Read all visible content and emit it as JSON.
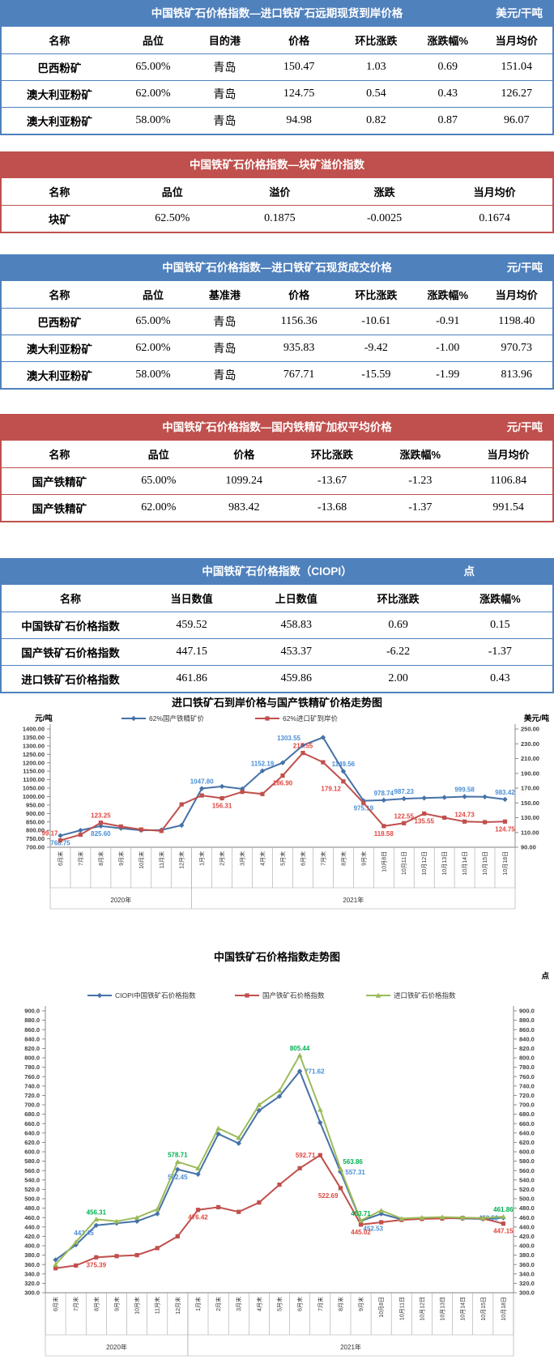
{
  "tables": [
    {
      "theme": "blue",
      "title": "中国铁矿石价格指数—进口铁矿石远期现货到岸价格",
      "unit": "美元/干吨",
      "columns": [
        "名称",
        "品位",
        "目的港",
        "价格",
        "环比涨跌",
        "涨跌幅%",
        "当月均价"
      ],
      "rows": [
        [
          "巴西粉矿",
          "65.00%",
          "青岛",
          "150.47",
          "1.03",
          "0.69",
          "151.04"
        ],
        [
          "澳大利亚粉矿",
          "62.00%",
          "青岛",
          "124.75",
          "0.54",
          "0.43",
          "126.27"
        ],
        [
          "澳大利亚粉矿",
          "58.00%",
          "青岛",
          "94.98",
          "0.82",
          "0.87",
          "96.07"
        ]
      ]
    },
    {
      "theme": "red",
      "title": "中国铁矿石价格指数—块矿溢价指数",
      "unit": "",
      "columns": [
        "名称",
        "品位",
        "溢价",
        "涨跌",
        "当月均价"
      ],
      "rows": [
        [
          "块矿",
          "62.50%",
          "0.1875",
          "-0.0025",
          "0.1674"
        ]
      ]
    },
    {
      "theme": "blue",
      "title": "中国铁矿石价格指数—进口铁矿石现货成交价格",
      "unit": "元/干吨",
      "columns": [
        "名称",
        "品位",
        "基准港",
        "价格",
        "环比涨跌",
        "涨跌幅%",
        "当月均价"
      ],
      "rows": [
        [
          "巴西粉矿",
          "65.00%",
          "青岛",
          "1156.36",
          "-10.61",
          "-0.91",
          "1198.40"
        ],
        [
          "澳大利亚粉矿",
          "62.00%",
          "青岛",
          "935.83",
          "-9.42",
          "-1.00",
          "970.73"
        ],
        [
          "澳大利亚粉矿",
          "58.00%",
          "青岛",
          "767.71",
          "-15.59",
          "-1.99",
          "813.96"
        ]
      ]
    },
    {
      "theme": "red",
      "title": "中国铁矿石价格指数—国内铁精矿加权平均价格",
      "unit": "元/干吨",
      "columns": [
        "名称",
        "品位",
        "价格",
        "环比涨跌",
        "涨跌幅%",
        "当月均价"
      ],
      "rows": [
        [
          "国产铁精矿",
          "65.00%",
          "1099.24",
          "-13.67",
          "-1.23",
          "1106.84"
        ],
        [
          "国产铁精矿",
          "62.00%",
          "983.42",
          "-13.68",
          "-1.37",
          "991.54"
        ]
      ]
    },
    {
      "theme": "blue",
      "title": "中国铁矿石价格指数（CIOPI）",
      "unit": "点",
      "columns": [
        "名称",
        "当日数值",
        "上日数值",
        "环比涨跌",
        "涨跌幅%"
      ],
      "rows": [
        [
          "中国铁矿石价格指数",
          "459.52",
          "458.83",
          "0.69",
          "0.15"
        ],
        [
          "国产铁矿石价格指数",
          "447.15",
          "453.37",
          "-6.22",
          "-1.37"
        ],
        [
          "进口铁矿石价格指数",
          "461.86",
          "459.86",
          "2.00",
          "0.43"
        ]
      ]
    }
  ],
  "chart_data": [
    {
      "type": "line",
      "title": "进口铁矿石到岸价格与国产铁精矿价格走势图",
      "left_axis": {
        "unit": "元/吨",
        "min": 700,
        "max": 1400,
        "step": 50,
        "decimals": 2
      },
      "right_axis": {
        "unit": "美元/吨",
        "min": 90,
        "max": 250,
        "step": 20,
        "decimals": 2
      },
      "categories": [
        "6月末",
        "7月末",
        "8月末",
        "9月末",
        "10月末",
        "11月末",
        "12月末",
        "1月末",
        "2月末",
        "3月末",
        "4月末",
        "5月末",
        "6月末",
        "7月末",
        "8月末",
        "9月末",
        "10月8日",
        "10月11日",
        "10月12日",
        "10月13日",
        "10月14日",
        "10月15日",
        "10月18日"
      ],
      "year_groups": [
        {
          "label": "2020年",
          "from": 0,
          "to": 6
        },
        {
          "label": "2021年",
          "from": 7,
          "to": 22
        }
      ],
      "series": [
        {
          "name": "62%国产铁精矿价",
          "marker": "diamond",
          "axis": "left",
          "color": "#4572a7",
          "label_color": "#4a8ed4",
          "values": [
            768.75,
            800,
            825.6,
            812,
            800,
            802,
            830,
            1047.8,
            1060,
            1045,
            1152.19,
            1200,
            1303.55,
            1350,
            1149.56,
            975.19,
            978.74,
            987.23,
            991,
            995,
            999.58,
            998,
            983.42
          ],
          "labeled_points": [
            {
              "i": 0,
              "pos": "b"
            },
            {
              "i": 2,
              "pos": "b"
            },
            {
              "i": 7,
              "pos": "a"
            },
            {
              "i": 10,
              "pos": "a"
            },
            {
              "i": 12,
              "pos": "al"
            },
            {
              "i": 14,
              "pos": "a"
            },
            {
              "i": 15,
              "pos": "b"
            },
            {
              "i": 16,
              "pos": "a"
            },
            {
              "i": 17,
              "pos": "a"
            },
            {
              "i": 20,
              "pos": "a"
            },
            {
              "i": 22,
              "pos": "a"
            }
          ]
        },
        {
          "name": "62%进口矿到岸价",
          "marker": "square",
          "axis": "right",
          "color": "#c0504d",
          "label_color": "#e04640",
          "values": [
            99.17,
            107,
            123.25,
            118,
            114,
            112,
            148,
            160,
            156.31,
            165,
            162,
            186.9,
            217.55,
            205,
            179.12,
            150,
            118.58,
            122.55,
            135.55,
            130,
            124.73,
            124,
            124.75
          ],
          "labeled_points": [
            {
              "i": 0,
              "pos": "al"
            },
            {
              "i": 2,
              "pos": "a"
            },
            {
              "i": 8,
              "pos": "b"
            },
            {
              "i": 11,
              "pos": "b"
            },
            {
              "i": 12,
              "pos": "a"
            },
            {
              "i": 14,
              "pos": "bl"
            },
            {
              "i": 16,
              "pos": "b"
            },
            {
              "i": 17,
              "pos": "a"
            },
            {
              "i": 18,
              "pos": "b"
            },
            {
              "i": 20,
              "pos": "a"
            },
            {
              "i": 22,
              "pos": "b"
            }
          ]
        }
      ]
    },
    {
      "type": "line",
      "title": "中国铁矿石价格指数走势图",
      "left_axis": {
        "unit": "",
        "min": 300,
        "max": 900,
        "step": 20,
        "decimals": 1
      },
      "right_axis": {
        "unit": "点",
        "min": 300,
        "max": 900,
        "step": 20,
        "decimals": 1
      },
      "categories": [
        "6月末",
        "7月末",
        "8月末",
        "9月末",
        "10月末",
        "11月末",
        "12月末",
        "1月末",
        "2月末",
        "3月末",
        "4月末",
        "5月末",
        "6月末",
        "7月末",
        "8月末",
        "9月末",
        "10月8日",
        "10月11日",
        "10月12日",
        "10月13日",
        "10月14日",
        "10月15日",
        "10月18日"
      ],
      "year_groups": [
        {
          "label": "2020年",
          "from": 0,
          "to": 6
        },
        {
          "label": "2021年",
          "from": 7,
          "to": 22
        }
      ],
      "series": [
        {
          "name": "CIOPI中国铁矿石价格指数",
          "marker": "diamond",
          "axis": "left",
          "color": "#4572a7",
          "label_color": "#4a8ed4",
          "values": [
            370,
            402,
            443.45,
            448,
            452,
            468,
            562.45,
            552,
            638,
            618,
            688,
            718,
            771.62,
            662,
            557.31,
            452.53,
            468,
            456,
            458,
            459,
            458,
            457,
            459.52
          ],
          "labeled_points": [
            {
              "i": 2,
              "pos": "bl"
            },
            {
              "i": 6,
              "pos": "b"
            },
            {
              "i": 12,
              "pos": "r"
            },
            {
              "i": 14,
              "pos": "r"
            },
            {
              "i": 15,
              "pos": "br"
            },
            {
              "i": 22,
              "pos": "l"
            }
          ]
        },
        {
          "name": "国产铁矿石价格指数",
          "marker": "square",
          "axis": "left",
          "color": "#c0504d",
          "label_color": "#e04640",
          "values": [
            352,
            358,
            375.39,
            378,
            380,
            395,
            420,
            476.42,
            482,
            472,
            492,
            530,
            565,
            592.71,
            522.69,
            445.02,
            450,
            455,
            457,
            458,
            459,
            458,
            447.15
          ],
          "labeled_points": [
            {
              "i": 2,
              "pos": "b"
            },
            {
              "i": 7,
              "pos": "b"
            },
            {
              "i": 13,
              "pos": "l"
            },
            {
              "i": 14,
              "pos": "bl"
            },
            {
              "i": 15,
              "pos": "b"
            },
            {
              "i": 22,
              "pos": "b"
            }
          ]
        },
        {
          "name": "进口铁矿石价格指数",
          "marker": "triangle",
          "axis": "left",
          "color": "#9bbb59",
          "label_color": "#00b050",
          "values": [
            360,
            408,
            456.31,
            452,
            460,
            478,
            578.71,
            565,
            650,
            630,
            700,
            730,
            805.44,
            690,
            563.86,
            453.71,
            475,
            458,
            460,
            461,
            460,
            459,
            461.86
          ],
          "labeled_points": [
            {
              "i": 2,
              "pos": "a"
            },
            {
              "i": 6,
              "pos": "a"
            },
            {
              "i": 12,
              "pos": "a"
            },
            {
              "i": 14,
              "pos": "ar"
            },
            {
              "i": 15,
              "pos": "a"
            },
            {
              "i": 22,
              "pos": "a"
            }
          ]
        }
      ]
    }
  ]
}
